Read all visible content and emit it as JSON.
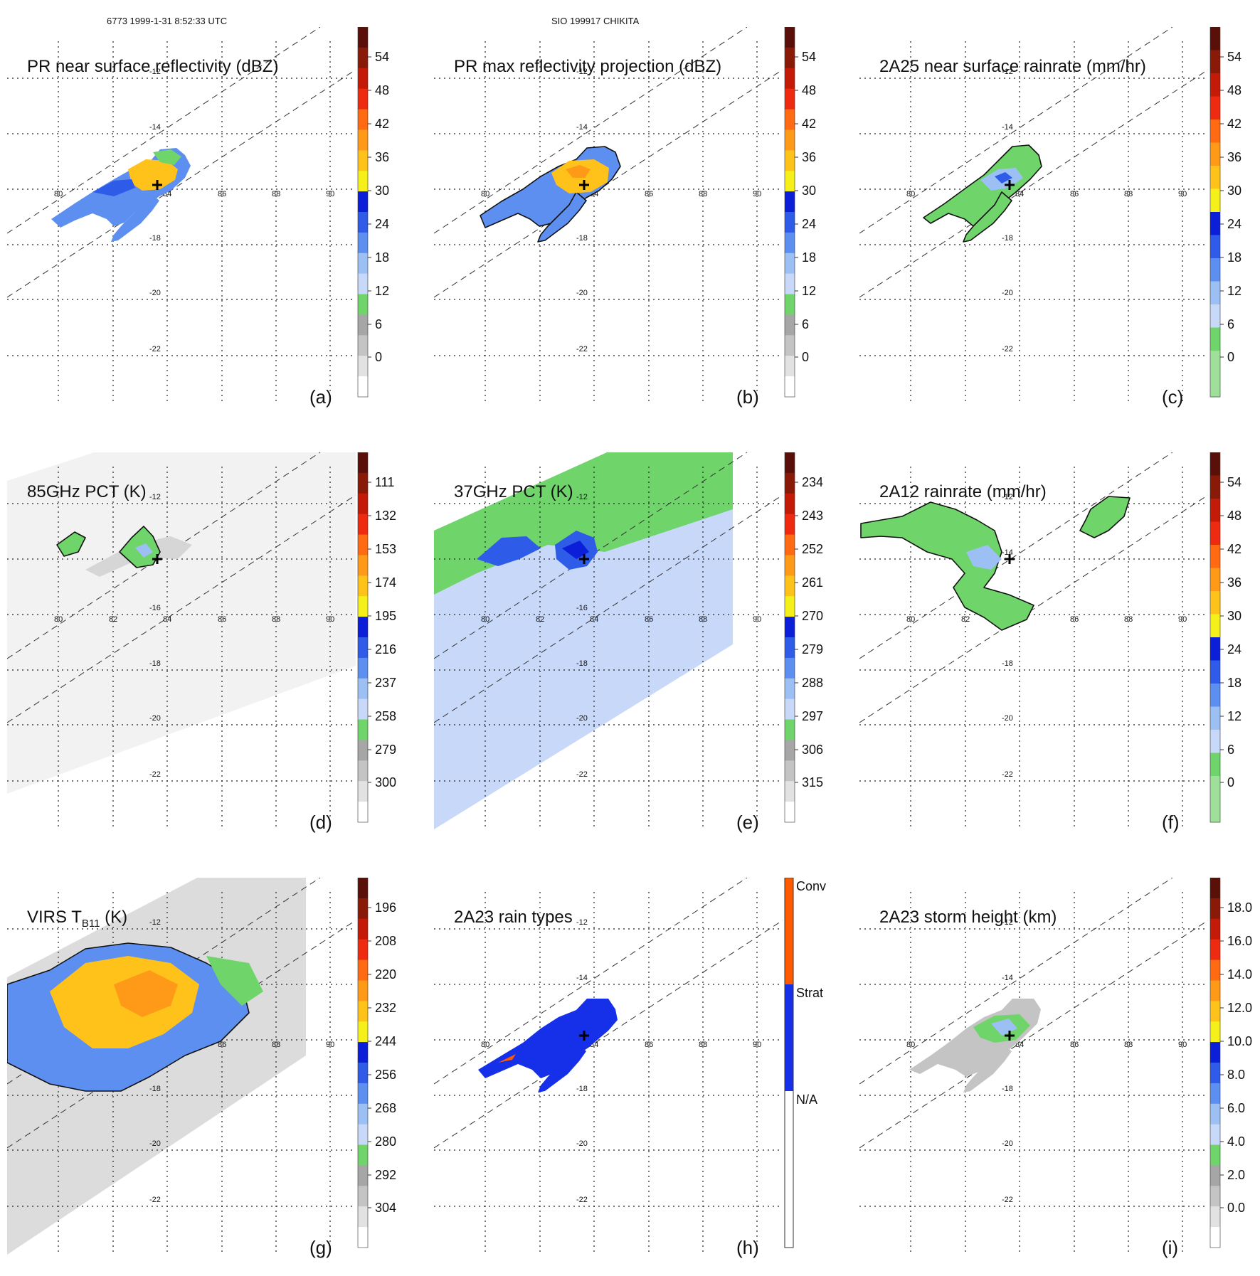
{
  "header": {
    "orbit_datetime": "6773 1999-1-31 8:52:33 UTC",
    "storm_name": "SIO 199917 CHIKITA"
  },
  "map": {
    "lon_labels": [
      "80",
      "82",
      "84",
      "86",
      "88",
      "90"
    ],
    "lat_labels": [
      "-12",
      "-14",
      "-16",
      "-18",
      "-20",
      "-22"
    ]
  },
  "colors": {
    "white": "#ffffff",
    "grey_light": "#e2e2e2",
    "grey_mid": "#c4c4c4",
    "grey_dark": "#a6a6a6",
    "green_light": "#9ee09a",
    "green": "#6fd46a",
    "blue_pale": "#c8d8f8",
    "blue_light": "#9cc0f4",
    "blue_mid": "#5d8ff0",
    "blue": "#2e5be8",
    "blue_dark": "#0b1fd8",
    "yellow": "#f6f01a",
    "orange_light": "#ffc21a",
    "orange": "#ff9a18",
    "orange_red": "#ff6a12",
    "red": "#ee2a10",
    "red_dark": "#c41a08",
    "brown": "#8a1a08",
    "brown_dark": "#5a1008",
    "conv": "#ff5a00",
    "strat": "#1530e8",
    "na": "#ffffff"
  },
  "panels": [
    {
      "id": "a",
      "title": "PR near surface reflectivity (dBZ)",
      "label": "(a)",
      "colorbar_ticks": [
        "54",
        "48",
        "42",
        "36",
        "30",
        "24",
        "18",
        "12",
        "6",
        "0"
      ]
    },
    {
      "id": "b",
      "title": "PR max reflectivity projection (dBZ)",
      "label": "(b)",
      "colorbar_ticks": [
        "54",
        "48",
        "42",
        "36",
        "30",
        "24",
        "18",
        "12",
        "6",
        "0"
      ]
    },
    {
      "id": "c",
      "title": "2A25 near surface rainrate (mm/hr)",
      "label": "(c)",
      "colorbar_ticks": [
        "54",
        "48",
        "42",
        "36",
        "30",
        "24",
        "18",
        "12",
        "6",
        "0"
      ]
    },
    {
      "id": "d",
      "title": "85GHz PCT (K)",
      "label": "(d)",
      "colorbar_ticks": [
        "111",
        "132",
        "153",
        "174",
        "195",
        "216",
        "237",
        "258",
        "279",
        "300"
      ]
    },
    {
      "id": "e",
      "title": "37GHz PCT (K)",
      "label": "(e)",
      "colorbar_ticks": [
        "234",
        "243",
        "252",
        "261",
        "270",
        "279",
        "288",
        "297",
        "306",
        "315"
      ]
    },
    {
      "id": "f",
      "title": "2A12 rainrate (mm/hr)",
      "label": "(f)",
      "colorbar_ticks": [
        "54",
        "48",
        "42",
        "36",
        "30",
        "24",
        "18",
        "12",
        "6",
        "0"
      ]
    },
    {
      "id": "g",
      "title_main": "VIRS T",
      "title_sub": "B11",
      "title_tail": " (K)",
      "label": "(g)",
      "colorbar_ticks": [
        "196",
        "208",
        "220",
        "232",
        "244",
        "256",
        "268",
        "280",
        "292",
        "304"
      ]
    },
    {
      "id": "h",
      "title": "2A23 rain types",
      "label": "(h)",
      "rain_types": [
        "Conv",
        "Strat",
        "N/A"
      ]
    },
    {
      "id": "i",
      "title": "2A23 storm height (km)",
      "label": "(i)",
      "colorbar_ticks": [
        "18.0",
        "16.0",
        "14.0",
        "12.0",
        "10.0",
        "8.0",
        "6.0",
        "4.0",
        "2.0",
        "0.0"
      ]
    }
  ]
}
